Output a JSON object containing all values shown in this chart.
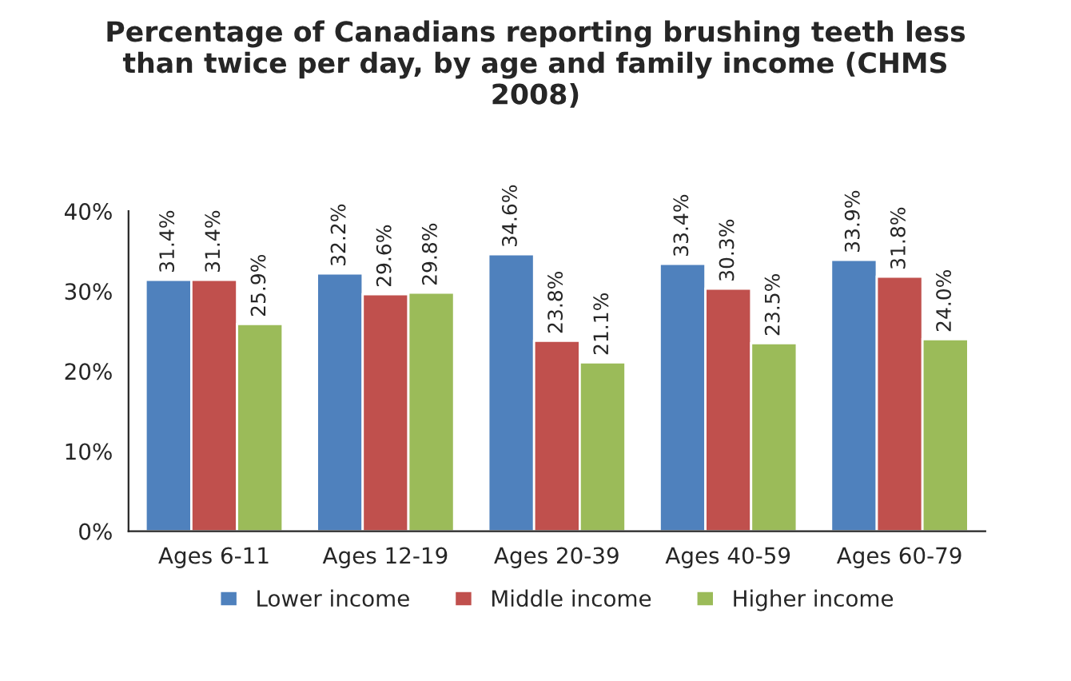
{
  "chart_data": {
    "type": "bar",
    "title": "Percentage of Canadians reporting brushing teeth less\nthan twice per day, by age and family income (CHMS\n2008)",
    "categories": [
      "Ages 6-11",
      "Ages 12-19",
      "Ages 20-39",
      "Ages 40-59",
      "Ages 60-79"
    ],
    "series": [
      {
        "name": "Lower income",
        "color": "#4f81bd",
        "values": [
          31.4,
          32.2,
          34.6,
          33.4,
          33.9
        ],
        "value_labels": [
          "31.4%",
          "32.2%",
          "34.6%",
          "33.4%",
          "33.9%"
        ]
      },
      {
        "name": "Middle income",
        "color": "#c0504d",
        "values": [
          31.4,
          29.6,
          23.8,
          30.3,
          31.8
        ],
        "value_labels": [
          "31.4%",
          "29.6%",
          "23.8%",
          "30.3%",
          "31.8%"
        ]
      },
      {
        "name": "Higher income",
        "color": "#9bbb59",
        "values": [
          25.9,
          29.8,
          21.1,
          23.5,
          24.0
        ],
        "value_labels": [
          "25.9%",
          "29.8%",
          "21.1%",
          "23.5%",
          "24.0%"
        ]
      }
    ],
    "ylim": [
      0,
      40
    ],
    "yticks": [
      {
        "value": 0,
        "label": "0%"
      },
      {
        "value": 10,
        "label": "10%"
      },
      {
        "value": 20,
        "label": "20%"
      },
      {
        "value": 30,
        "label": "30%"
      },
      {
        "value": 40,
        "label": "40%"
      }
    ],
    "legend": "bottom",
    "grid": false
  }
}
